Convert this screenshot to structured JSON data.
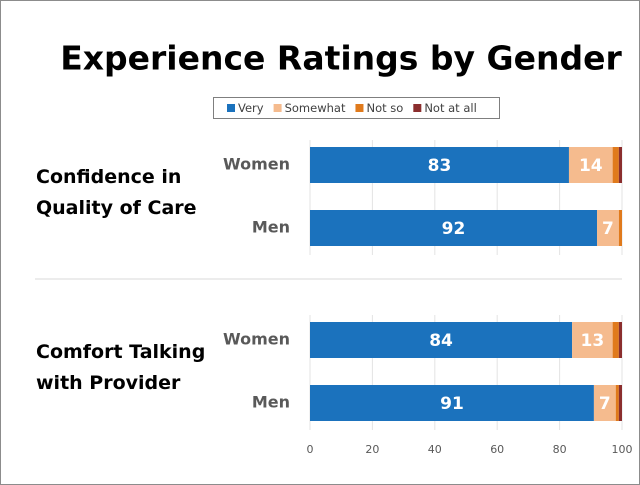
{
  "chart_data": {
    "type": "bar",
    "orientation": "horizontal",
    "stacked": true,
    "title": "Experience Ratings by Gender",
    "groups": [
      "Confidence in Quality of Care",
      "Comfort Talking with Provider"
    ],
    "categories": [
      "Women",
      "Men",
      "Women",
      "Men"
    ],
    "series": [
      {
        "name": "Very",
        "color": "#1b72bd",
        "values": [
          83,
          92,
          84,
          91
        ]
      },
      {
        "name": "Somewhat",
        "color": "#f5bb8e",
        "values": [
          14,
          7,
          13,
          7
        ]
      },
      {
        "name": "Not so",
        "color": "#e07a1c",
        "values": [
          2,
          1,
          2,
          1
        ]
      },
      {
        "name": "Not at all",
        "color": "#8b2e2e",
        "values": [
          1,
          0,
          1,
          1
        ]
      }
    ],
    "xlim": [
      0,
      100
    ],
    "xticks": [
      0,
      20,
      40,
      60,
      80,
      100
    ],
    "grid": true,
    "legend": "top"
  }
}
